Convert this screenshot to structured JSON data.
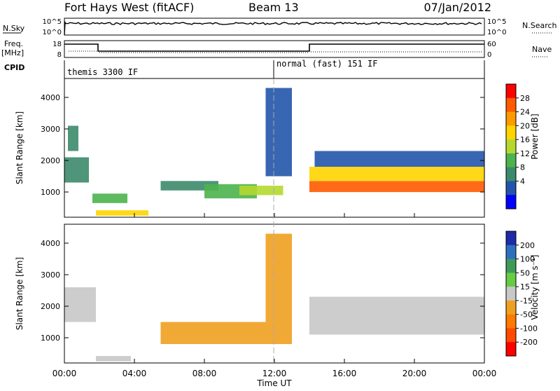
{
  "header": {
    "station": "Fort Hays West (fitACF)",
    "beam": "Beam 13",
    "date": "07/Jan/2012"
  },
  "status_rows": {
    "nsky_label": "N.Sky",
    "nsky_ticks": [
      "10^5",
      "10^0"
    ],
    "nsearch_label": "N.Search",
    "nsearch_ticks": [
      "10^5",
      "10^0"
    ],
    "freq_label": "Freq.",
    "freq_unit": "[MHz]",
    "freq_ticks": [
      "18",
      "8"
    ],
    "nave_label": "Nave",
    "nave_ticks": [
      "60",
      "0"
    ],
    "cpid_label": "CPID",
    "cpid_segments": [
      "themis 3300 IF",
      "normal (fast) 151 IF"
    ]
  },
  "axes": {
    "xlabel": "Time UT",
    "x_ticks": [
      "00:00",
      "04:00",
      "08:00",
      "12:00",
      "16:00",
      "20:00",
      "00:00"
    ],
    "ylabel_top": "Slant Range [km]",
    "ylabel_bottom": "Slant Range [km]",
    "y_ticks": [
      "1000",
      "2000",
      "3000",
      "4000"
    ]
  },
  "colorbars": {
    "power_title": "Power [dB]",
    "power_ticks": [
      "28",
      "24",
      "20",
      "16",
      "12",
      "8",
      "4"
    ],
    "power_colors": [
      "#ff0000",
      "#ff5a00",
      "#ff9900",
      "#ffd400",
      "#b5d830",
      "#4db34d",
      "#3c8a6c",
      "#2255aa",
      "#0000ff"
    ],
    "velocity_title": "Velocity [m s⁻¹]",
    "velocity_ticks": [
      "200",
      "100",
      "50",
      "15",
      "-15",
      "-50",
      "-100",
      "-200"
    ],
    "velocity_colors": [
      "#1e2aa8",
      "#2f6fc0",
      "#3f9a5a",
      "#66cc44",
      "#c8c8c8",
      "#f0a020",
      "#ff7a00",
      "#ff4a00",
      "#ff0000"
    ]
  },
  "chart_data": [
    {
      "type": "heatmap",
      "title": "Power [dB]",
      "xlabel": "Time UT",
      "ylabel": "Slant Range [km]",
      "xlim": [
        0,
        24
      ],
      "ylim": [
        200,
        4600
      ],
      "clim": [
        0,
        32
      ],
      "regions": [
        {
          "t": [
            0.0,
            1.4
          ],
          "range": [
            1300,
            2100
          ],
          "value": 10
        },
        {
          "t": [
            0.2,
            0.8
          ],
          "range": [
            2300,
            3100
          ],
          "value": 8
        },
        {
          "t": [
            1.6,
            3.6
          ],
          "range": [
            650,
            950
          ],
          "value": 12
        },
        {
          "t": [
            1.8,
            4.8
          ],
          "range": [
            250,
            420
          ],
          "value": 21
        },
        {
          "t": [
            5.5,
            8.8
          ],
          "range": [
            1050,
            1350
          ],
          "value": 10
        },
        {
          "t": [
            8.0,
            11.0
          ],
          "range": [
            800,
            1250
          ],
          "value": 14
        },
        {
          "t": [
            10.0,
            12.5
          ],
          "range": [
            900,
            1200
          ],
          "value": 16
        },
        {
          "t": [
            11.5,
            13.0
          ],
          "range": [
            1500,
            4300
          ],
          "value": 6
        },
        {
          "t": [
            14.0,
            24.0
          ],
          "range": [
            1000,
            1350
          ],
          "value": 28
        },
        {
          "t": [
            14.0,
            24.0
          ],
          "range": [
            1350,
            1800
          ],
          "value": 18
        },
        {
          "t": [
            14.3,
            24.0
          ],
          "range": [
            1800,
            2300
          ],
          "value": 6
        }
      ]
    },
    {
      "type": "heatmap",
      "title": "Velocity [m s⁻¹]",
      "xlabel": "Time UT",
      "ylabel": "Slant Range [km]",
      "xlim": [
        0,
        24
      ],
      "ylim": [
        200,
        4600
      ],
      "clim": [
        -200,
        200
      ],
      "regions": [
        {
          "t": [
            0.0,
            1.8
          ],
          "range": [
            1500,
            2600
          ],
          "value": 0
        },
        {
          "t": [
            1.8,
            3.8
          ],
          "range": [
            250,
            420
          ],
          "value": 20
        },
        {
          "t": [
            5.5,
            13.0
          ],
          "range": [
            800,
            1500
          ],
          "value": -60
        },
        {
          "t": [
            11.5,
            13.0
          ],
          "range": [
            1500,
            4300
          ],
          "value": -40
        },
        {
          "t": [
            14.0,
            24.0
          ],
          "range": [
            1100,
            2300
          ],
          "value": 0
        }
      ]
    }
  ]
}
